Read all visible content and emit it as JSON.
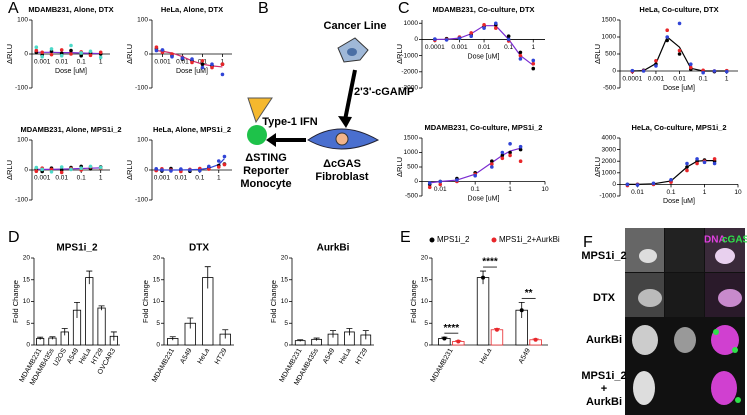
{
  "panel_labels": [
    "A",
    "B",
    "C",
    "D",
    "E",
    "F"
  ],
  "diagram": {
    "cancer": "Cancer Line",
    "cgamp": "2'3'-cGAMP",
    "ifn": "Type-1 IFN",
    "fibroblast": [
      "ΔcGAS",
      "Fibroblast"
    ],
    "monocyte": [
      "ΔSTING",
      "Reporter",
      "Monocyte"
    ]
  },
  "images": {
    "rows": [
      "MPS1i_2",
      "DTX",
      "AurkBi",
      "MPS1i_2",
      "+",
      "AurkBi"
    ],
    "dna": "DNA",
    "cgas": "cGAS"
  },
  "chart_data": [
    {
      "type": "scatter",
      "title": "MDAMB231, Alone, DTX",
      "ylabel": "ΔRLU",
      "xlabel": "Dose [uM]",
      "xscale": "log",
      "xlim": [
        0.0003,
        3
      ],
      "xticks": [
        0.001,
        0.01,
        0.1,
        1
      ],
      "ylim": [
        -100,
        100
      ],
      "yticks": [
        -100,
        0,
        100
      ],
      "x": [
        0.0005,
        0.001,
        0.003,
        0.01,
        0.03,
        0.1,
        0.3,
        1
      ],
      "series": [
        {
          "color": "#000000",
          "values": [
            5,
            -3,
            8,
            2,
            10,
            -5,
            3,
            0
          ]
        },
        {
          "color": "#e8262a",
          "values": [
            10,
            5,
            -2,
            12,
            0,
            6,
            -4,
            5
          ]
        },
        {
          "color": "#4dd9c8",
          "values": [
            20,
            -8,
            15,
            -5,
            25,
            3,
            8,
            -10
          ]
        }
      ],
      "fit": {
        "color": "#7a2bd1",
        "values": [
          5,
          5,
          5,
          4,
          4,
          3,
          2,
          1
        ]
      }
    },
    {
      "type": "scatter",
      "title": "HeLa, Alone, DTX",
      "ylabel": "ΔRLU",
      "xlabel": "Dose [uM]",
      "xscale": "log",
      "xlim": [
        0.0003,
        3
      ],
      "xticks": [
        0.001,
        0.01,
        0.1,
        1
      ],
      "ylim": [
        -100,
        100
      ],
      "yticks": [
        -100,
        0,
        100
      ],
      "x": [
        0.0005,
        0.001,
        0.003,
        0.01,
        0.03,
        0.1,
        0.3,
        1
      ],
      "series": [
        {
          "color": "#000000",
          "values": [
            15,
            10,
            -5,
            -15,
            -20,
            -30,
            -35,
            -30
          ]
        },
        {
          "color": "#e8262a",
          "values": [
            20,
            5,
            0,
            -10,
            -25,
            -20,
            -40,
            -30
          ]
        },
        {
          "color": "#3044d6",
          "values": [
            10,
            12,
            -8,
            -12,
            -15,
            -40,
            -30,
            -60
          ]
        }
      ],
      "fit": {
        "color": "#d12b6a",
        "values": [
          10,
          8,
          3,
          -8,
          -20,
          -30,
          -35,
          -38
        ]
      }
    },
    {
      "type": "scatter",
      "title": "MDAMB231, Alone, MPS1i_2",
      "ylabel": "ΔRLU",
      "xscale": "log",
      "xlim": [
        0.0003,
        3
      ],
      "xticks": [
        0.001,
        0.01,
        0.1,
        1
      ],
      "ylim": [
        -100,
        100
      ],
      "yticks": [
        -100,
        0,
        100
      ],
      "x": [
        0.0005,
        0.001,
        0.003,
        0.01,
        0.03,
        0.1,
        0.3,
        1
      ],
      "series": [
        {
          "color": "#000000",
          "values": [
            3,
            -5,
            6,
            0,
            8,
            12,
            4,
            10
          ]
        },
        {
          "color": "#e8262a",
          "values": [
            -4,
            6,
            2,
            -8,
            5,
            0,
            10,
            6
          ]
        },
        {
          "color": "#4dd9c8",
          "values": [
            8,
            2,
            -6,
            10,
            2,
            6,
            12,
            8
          ]
        }
      ],
      "fit": {
        "color": "#7a2bd1",
        "values": [
          2,
          2,
          2,
          3,
          4,
          5,
          6,
          7
        ]
      }
    },
    {
      "type": "scatter",
      "title": "HeLa, Alone, MPS1i_2",
      "ylabel": "ΔRLU",
      "xscale": "log",
      "xlim": [
        0.0003,
        5
      ],
      "xticks": [
        0.001,
        0.01,
        0.1,
        1
      ],
      "ylim": [
        -100,
        100
      ],
      "yticks": [
        -100,
        0,
        100
      ],
      "x": [
        0.0005,
        0.001,
        0.003,
        0.01,
        0.03,
        0.1,
        0.3,
        1,
        2
      ],
      "series": [
        {
          "color": "#000000",
          "values": [
            2,
            -3,
            5,
            0,
            -4,
            3,
            8,
            15,
            20
          ]
        },
        {
          "color": "#e8262a",
          "values": [
            -2,
            4,
            0,
            -5,
            2,
            5,
            3,
            10,
            18
          ]
        },
        {
          "color": "#3044d6",
          "values": [
            4,
            0,
            -3,
            3,
            0,
            -2,
            12,
            30,
            45
          ]
        }
      ],
      "fit": {
        "color": "#3044d6",
        "values": [
          0,
          0,
          0,
          0,
          1,
          2,
          6,
          18,
          38
        ]
      }
    },
    {
      "type": "scatter",
      "title": "MDAMB231, Co-culture, DTX",
      "ylabel": "ΔRLU",
      "xlabel": "Dose [uM]",
      "xscale": "log",
      "xlim": [
        3e-05,
        3
      ],
      "xticks": [
        0.0001,
        0.001,
        0.01,
        0.1,
        1
      ],
      "ylim": [
        -3000,
        1200
      ],
      "yticks": [
        -3000,
        -2000,
        -1000,
        0,
        1000
      ],
      "x": [
        0.0001,
        0.0003,
        0.001,
        0.003,
        0.01,
        0.03,
        0.1,
        0.3,
        1
      ],
      "series": [
        {
          "color": "#000000",
          "values": [
            0,
            50,
            100,
            300,
            800,
            900,
            200,
            -800,
            -1800
          ]
        },
        {
          "color": "#e8262a",
          "values": [
            -50,
            0,
            150,
            400,
            900,
            700,
            -100,
            -1000,
            -1500
          ]
        },
        {
          "color": "#3044d6",
          "values": [
            20,
            -30,
            80,
            200,
            700,
            1000,
            0,
            -1200,
            -1300
          ]
        }
      ],
      "fit": {
        "color": "#7a2bd1",
        "values": [
          0,
          10,
          80,
          350,
          850,
          850,
          0,
          -1000,
          -1600
        ]
      }
    },
    {
      "type": "scatter",
      "title": "HeLa, Co-culture, DTX",
      "ylabel": "ΔRLU",
      "xlabel": "Dose [uM]",
      "xscale": "log",
      "xlim": [
        3e-05,
        3
      ],
      "xticks": [
        0.0001,
        0.001,
        0.01,
        0.1,
        1
      ],
      "ylim": [
        -500,
        1500
      ],
      "yticks": [
        -500,
        0,
        500,
        1000,
        1500
      ],
      "x": [
        0.0001,
        0.0003,
        0.001,
        0.003,
        0.01,
        0.03,
        0.1,
        0.3,
        1
      ],
      "series": [
        {
          "color": "#000000",
          "values": [
            0,
            20,
            200,
            900,
            500,
            50,
            0,
            -20,
            0
          ]
        },
        {
          "color": "#e8262a",
          "values": [
            -20,
            10,
            300,
            1200,
            600,
            100,
            20,
            0,
            10
          ]
        },
        {
          "color": "#3044d6",
          "values": [
            10,
            0,
            150,
            1000,
            1400,
            200,
            -50,
            0,
            -20
          ]
        }
      ],
      "fit": {
        "color": "#000000",
        "values": [
          0,
          10,
          220,
          1000,
          700,
          80,
          0,
          0,
          0
        ]
      }
    },
    {
      "type": "scatter",
      "title": "MDAMB231, Co-culture, MPS1i_2",
      "ylabel": "ΔRLU",
      "xlabel": "Dose [uM]",
      "xscale": "log",
      "xlim": [
        0.003,
        10
      ],
      "xticks": [
        0.01,
        0.1,
        1,
        10
      ],
      "ylim": [
        -500,
        1500
      ],
      "yticks": [
        -500,
        0,
        500,
        1000,
        1500
      ],
      "x": [
        0.005,
        0.01,
        0.03,
        0.1,
        0.3,
        0.6,
        1,
        2
      ],
      "series": [
        {
          "color": "#000000",
          "values": [
            -100,
            0,
            100,
            300,
            700,
            900,
            1000,
            1100
          ]
        },
        {
          "color": "#e8262a",
          "values": [
            -200,
            -100,
            0,
            250,
            600,
            800,
            900,
            700
          ]
        },
        {
          "color": "#3044d6",
          "values": [
            -50,
            0,
            50,
            200,
            500,
            1000,
            1300,
            1200
          ]
        }
      ],
      "fit": {
        "color": "#7a2bd1",
        "values": [
          -50,
          0,
          50,
          250,
          650,
          900,
          1050,
          1150
        ]
      }
    },
    {
      "type": "scatter",
      "title": "HeLa, Co-culture, MPS1i_2",
      "ylabel": "ΔRLU",
      "xlabel": "Dose [uM]",
      "xscale": "log",
      "xlim": [
        0.003,
        10
      ],
      "xticks": [
        0.01,
        0.1,
        1,
        10
      ],
      "ylim": [
        -1000,
        4000
      ],
      "yticks": [
        -1000,
        0,
        1000,
        2000,
        3000,
        4000
      ],
      "x": [
        0.005,
        0.01,
        0.03,
        0.1,
        0.3,
        0.6,
        1,
        2
      ],
      "series": [
        {
          "color": "#000000",
          "values": [
            0,
            0,
            50,
            300,
            1500,
            2000,
            2100,
            2000
          ]
        },
        {
          "color": "#e8262a",
          "values": [
            -100,
            0,
            0,
            200,
            1200,
            1800,
            2000,
            2200
          ]
        },
        {
          "color": "#3044d6",
          "values": [
            0,
            -50,
            100,
            400,
            1800,
            2200,
            1900,
            1800
          ]
        }
      ],
      "fit": {
        "color": "#000000",
        "values": [
          0,
          0,
          50,
          300,
          1500,
          2000,
          2050,
          2050
        ]
      }
    },
    {
      "type": "bar",
      "title": "MPS1i_2",
      "ylabel": "Fold Change",
      "ylim": [
        0,
        20
      ],
      "yticks": [
        0,
        5,
        10,
        15,
        20
      ],
      "color": "#ffffff",
      "categories": [
        "MDAMB231",
        "MDAMB435s",
        "U2OS",
        "A549",
        "HeLa",
        "HT29",
        "OVCAR3"
      ],
      "values": [
        1.5,
        1.6,
        3,
        8,
        15.5,
        8.5,
        2
      ],
      "errors": [
        0.3,
        0.3,
        0.8,
        1.8,
        1.5,
        0.5,
        1
      ]
    },
    {
      "type": "bar",
      "title": "DTX",
      "ylabel": "Fold Change",
      "ylim": [
        0,
        20
      ],
      "yticks": [
        0,
        5,
        10,
        15,
        20
      ],
      "color": "#ffffff",
      "categories": [
        "MDAMB231",
        "A549",
        "HeLa",
        "HT29"
      ],
      "values": [
        1.5,
        5,
        15.5,
        2.5
      ],
      "errors": [
        0.4,
        1.2,
        2.5,
        1
      ]
    },
    {
      "type": "bar",
      "title": "AurkBi",
      "ylabel": "Fold Change",
      "ylim": [
        0,
        20
      ],
      "yticks": [
        0,
        5,
        10,
        15,
        20
      ],
      "color": "#ffffff",
      "categories": [
        "MDAMB231",
        "MDAMB435s",
        "A549",
        "HeLa",
        "HT29"
      ],
      "values": [
        1,
        1.3,
        2.5,
        3,
        2.3
      ],
      "errors": [
        0.2,
        0.3,
        0.8,
        0.8,
        1
      ]
    },
    {
      "type": "grouped_bar",
      "ylabel": "Fold Change",
      "ylim": [
        0,
        20
      ],
      "yticks": [
        0,
        5,
        10,
        15,
        20
      ],
      "categories": [
        "MDAMB231",
        "HeLa",
        "A549"
      ],
      "series": [
        {
          "name": "MPS1i_2",
          "color": "#000000",
          "values": [
            1.5,
            15.5,
            8
          ],
          "errors": [
            0.3,
            1.5,
            1.8
          ]
        },
        {
          "name": "MPS1i_2+AurkBi",
          "color": "#e8262a",
          "values": [
            0.8,
            3.5,
            1.2
          ],
          "errors": [
            0.2,
            0.3,
            0.2
          ]
        }
      ],
      "significance": [
        "****",
        "****",
        "**"
      ]
    }
  ]
}
